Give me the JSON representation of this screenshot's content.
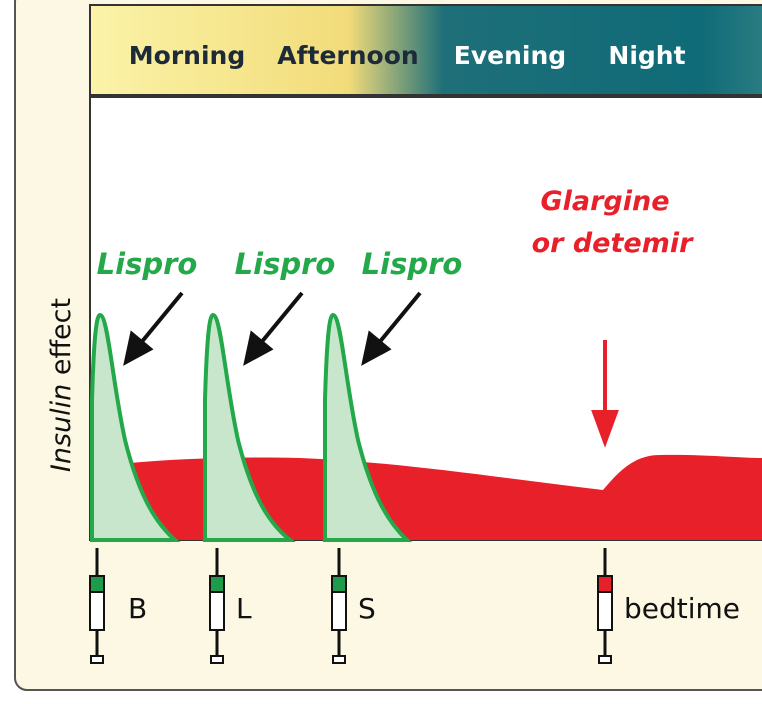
{
  "time_bands": [
    "Morning",
    "Afternoon",
    "Evening",
    "Night"
  ],
  "y_axis": {
    "italic": "Insulin",
    "rest": "effect"
  },
  "rapid_labels": [
    "Lispro",
    "Lispro",
    "Lispro"
  ],
  "basal_label": [
    "Glargine",
    "or detemir"
  ],
  "injections": [
    "B",
    "L",
    "S",
    "bedtime"
  ]
}
